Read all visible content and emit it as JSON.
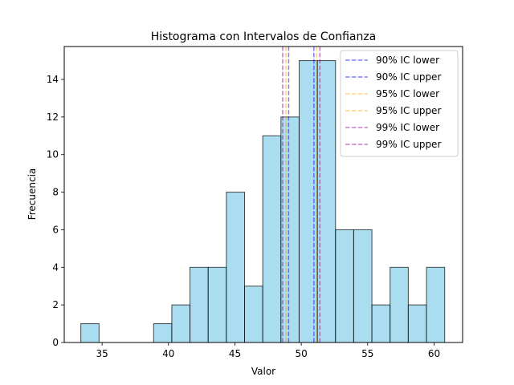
{
  "chart_data": {
    "type": "bar",
    "title": "Histograma con Intervalos de Confianza",
    "xlabel": "Valor",
    "ylabel": "Frecuencia",
    "xlim": [
      32.15,
      62.15
    ],
    "ylim": [
      0,
      15.75
    ],
    "bins": [
      {
        "start": 33.4,
        "end": 34.77,
        "count": 1
      },
      {
        "start": 34.77,
        "end": 36.14,
        "count": 0
      },
      {
        "start": 36.14,
        "end": 37.51,
        "count": 0
      },
      {
        "start": 37.51,
        "end": 38.88,
        "count": 0
      },
      {
        "start": 38.88,
        "end": 40.25,
        "count": 1
      },
      {
        "start": 40.25,
        "end": 41.62,
        "count": 2
      },
      {
        "start": 41.62,
        "end": 42.99,
        "count": 4
      },
      {
        "start": 42.99,
        "end": 44.36,
        "count": 4
      },
      {
        "start": 44.36,
        "end": 45.73,
        "count": 8
      },
      {
        "start": 45.73,
        "end": 47.1,
        "count": 3
      },
      {
        "start": 47.1,
        "end": 48.47,
        "count": 11
      },
      {
        "start": 48.47,
        "end": 49.84,
        "count": 12
      },
      {
        "start": 49.84,
        "end": 51.21,
        "count": 15
      },
      {
        "start": 51.21,
        "end": 52.58,
        "count": 15
      },
      {
        "start": 52.58,
        "end": 53.95,
        "count": 6
      },
      {
        "start": 53.95,
        "end": 55.32,
        "count": 6
      },
      {
        "start": 55.32,
        "end": 56.69,
        "count": 2
      },
      {
        "start": 56.69,
        "end": 58.06,
        "count": 4
      },
      {
        "start": 58.06,
        "end": 59.43,
        "count": 2
      },
      {
        "start": 59.43,
        "end": 60.8,
        "count": 4
      }
    ],
    "x_ticks": [
      35,
      40,
      45,
      50,
      55,
      60
    ],
    "y_ticks": [
      0,
      2,
      4,
      6,
      8,
      10,
      12,
      14
    ],
    "bar_color": "#87ceeb",
    "bar_edge_color": "#000000",
    "lines": [
      {
        "label": "90% IC lower",
        "x": 49.05,
        "color": "#0000ff"
      },
      {
        "label": "90% IC upper",
        "x": 50.95,
        "color": "#0000ff"
      },
      {
        "label": "95% IC lower",
        "x": 48.85,
        "color": "#ffa500"
      },
      {
        "label": "95% IC upper",
        "x": 51.15,
        "color": "#ffa500"
      },
      {
        "label": "99% IC lower",
        "x": 48.6,
        "color": "#800080"
      },
      {
        "label": "99% IC upper",
        "x": 51.4,
        "color": "#800080"
      }
    ],
    "legend_position": "top-right",
    "grid": false
  }
}
